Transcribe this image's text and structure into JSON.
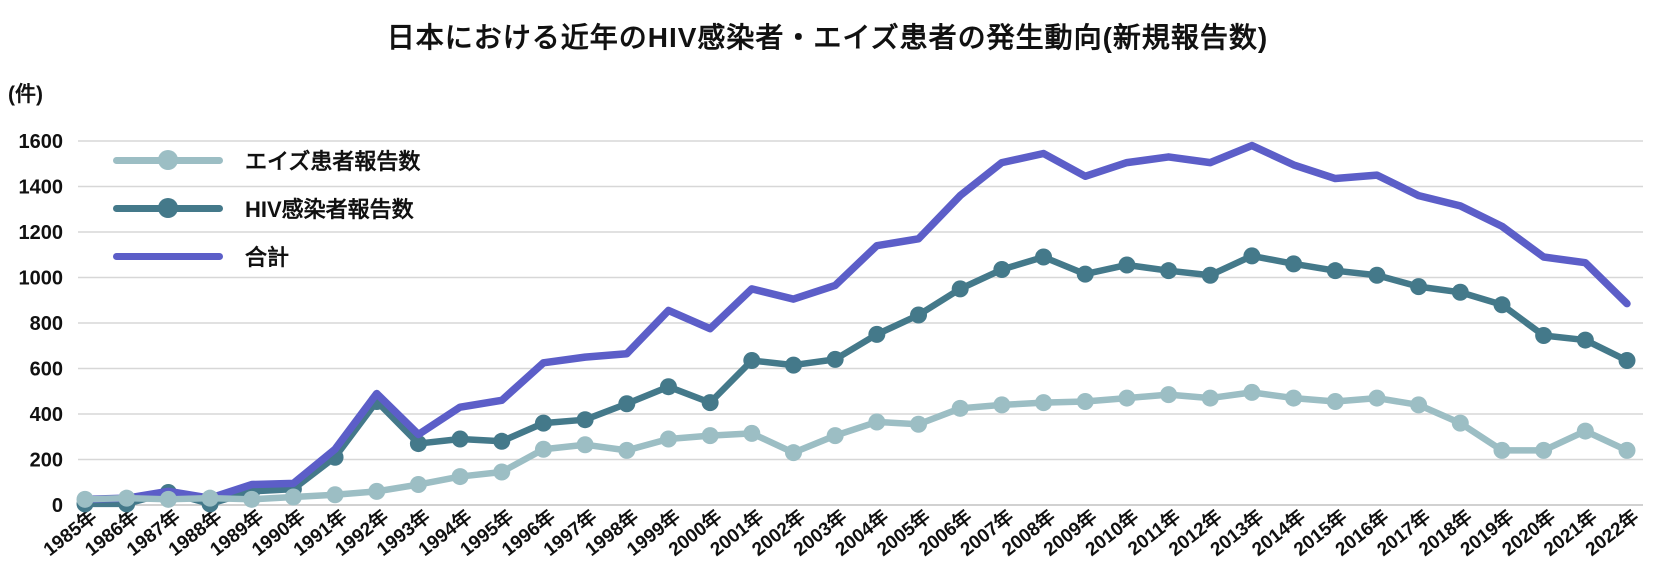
{
  "title": "日本における近年のHIV感染者・エイズ患者の発生動向(新規報告数)",
  "y_axis": {
    "unit_label": "(件)",
    "ticks": [
      0,
      200,
      400,
      600,
      800,
      1000,
      1200,
      1400,
      1600
    ]
  },
  "legend": [
    {
      "label": "エイズ患者報告数",
      "color": "#9cbec4",
      "marker": true
    },
    {
      "label": "HIV感染者報告数",
      "color": "#44798a",
      "marker": true
    },
    {
      "label": "合計",
      "color": "#5c5ec8",
      "marker": false
    }
  ],
  "colors": {
    "aids_series": "#9cbec4",
    "hiv_series": "#44798a",
    "total_series": "#5c5ec8",
    "gridline": "#d7d7d7",
    "baseline": "#c2c2c2",
    "text": "#111111"
  },
  "chart_data": {
    "type": "line",
    "title": "日本における近年のHIV感染者・エイズ患者の発生動向(新規報告数)",
    "ylabel": "(件)",
    "ylim": [
      0,
      1600
    ],
    "grid": true,
    "legend_position": "top-left",
    "categories": [
      "1985年",
      "1986年",
      "1987年",
      "1988年",
      "1989年",
      "1990年",
      "1991年",
      "1992年",
      "1993年",
      "1994年",
      "1995年",
      "1996年",
      "1997年",
      "1998年",
      "1999年",
      "2000年",
      "2001年",
      "2002年",
      "2003年",
      "2004年",
      "2005年",
      "2006年",
      "2007年",
      "2008年",
      "2009年",
      "2010年",
      "2011年",
      "2012年",
      "2013年",
      "2014年",
      "2015年",
      "2016年",
      "2017年",
      "2018年",
      "2019年",
      "2020年",
      "2021年",
      "2022年"
    ],
    "series": [
      {
        "name": "エイズ患者報告数",
        "color": "#9cbec4",
        "markers": true,
        "values": [
          25,
          30,
          25,
          30,
          25,
          35,
          45,
          60,
          90,
          125,
          145,
          245,
          265,
          240,
          290,
          305,
          315,
          230,
          305,
          365,
          355,
          425,
          440,
          450,
          455,
          470,
          485,
          470,
          495,
          470,
          455,
          470,
          440,
          360,
          240,
          240,
          325,
          240
        ]
      },
      {
        "name": "HIV感染者報告数",
        "color": "#44798a",
        "markers": true,
        "values": [
          5,
          5,
          55,
          5,
          60,
          70,
          210,
          455,
          270,
          290,
          280,
          360,
          375,
          445,
          520,
          450,
          635,
          615,
          640,
          750,
          835,
          950,
          1035,
          1090,
          1015,
          1055,
          1030,
          1010,
          1095,
          1060,
          1030,
          1010,
          960,
          935,
          880,
          745,
          725,
          635
        ]
      },
      {
        "name": "合計",
        "color": "#5c5ec8",
        "markers": false,
        "values": [
          25,
          30,
          60,
          30,
          90,
          95,
          245,
          490,
          310,
          430,
          460,
          625,
          650,
          665,
          855,
          775,
          950,
          905,
          965,
          1140,
          1170,
          1360,
          1505,
          1545,
          1445,
          1505,
          1530,
          1505,
          1580,
          1495,
          1435,
          1450,
          1360,
          1315,
          1225,
          1090,
          1065,
          885
        ]
      }
    ]
  }
}
